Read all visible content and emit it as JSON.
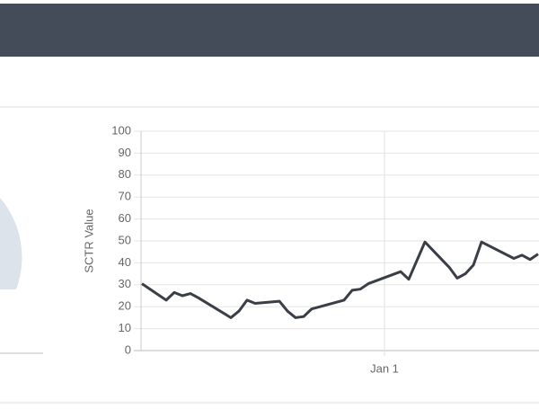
{
  "chart_data": {
    "type": "line",
    "y_label": "SCTR Value",
    "x": [
      0,
      3,
      4,
      5,
      6,
      7,
      11,
      12,
      13,
      14,
      17,
      18,
      19,
      20,
      21,
      25,
      26,
      27,
      28,
      32,
      33,
      35,
      38,
      39,
      40,
      41,
      42,
      46,
      47,
      48,
      49
    ],
    "series": [
      {
        "color": "#3a3f47",
        "values": [
          30.5,
          23,
          26.5,
          25,
          26,
          24,
          15,
          18,
          23,
          21.5,
          22.5,
          18,
          15,
          15.5,
          19,
          23,
          27.5,
          28,
          30.5,
          36,
          32.5,
          49.5,
          38,
          33,
          35,
          39,
          49.5,
          42,
          43.5,
          41.5,
          44
        ]
      }
    ],
    "xlim": [
      0,
      49
    ],
    "xticks": [
      {
        "value": 30,
        "label": "Jan 1"
      }
    ],
    "ylim": [
      0,
      100
    ],
    "yticks": [
      0,
      10,
      20,
      30,
      40,
      50,
      60,
      70,
      80,
      90,
      100
    ],
    "grid": true
  }
}
